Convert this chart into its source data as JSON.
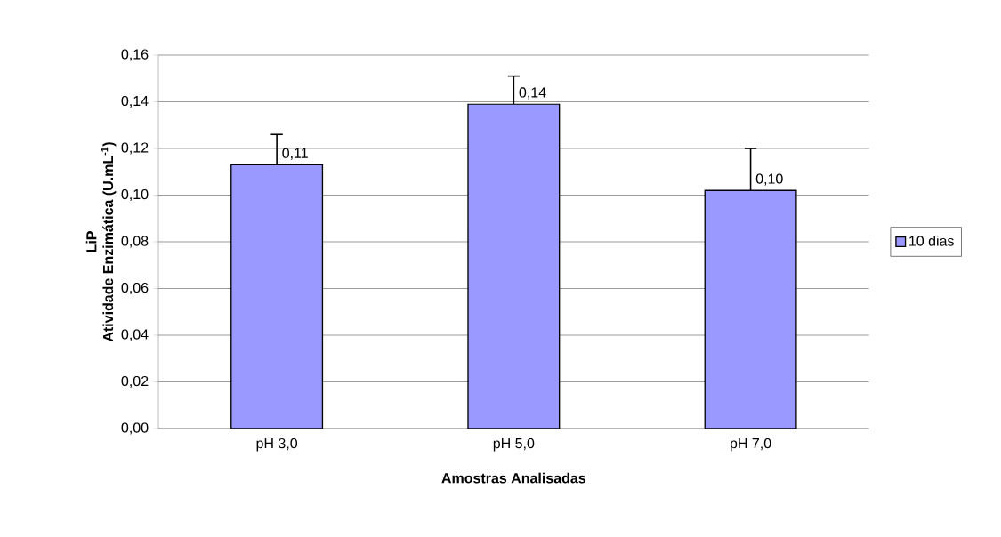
{
  "chart_data": {
    "type": "bar",
    "xlabel": "Amostras Analisadas",
    "ylabel": [
      "LiP",
      "Atividade Enzimática (U.mL$^{-1}$)"
    ],
    "categories": [
      "pH 3,0",
      "pH 5,0",
      "pH 7,0"
    ],
    "series": [
      {
        "name": "10 dias",
        "color": "#9999ff",
        "values": [
          0.113,
          0.139,
          0.102
        ],
        "errors": [
          0.013,
          0.012,
          0.018
        ],
        "value_labels": [
          "0,11",
          "0,14",
          "0,10"
        ]
      }
    ],
    "ylim": [
      0,
      0.16
    ],
    "yticks": [
      {
        "value": 0,
        "label": "0,00"
      },
      {
        "value": 0.02,
        "label": "0,02"
      },
      {
        "value": 0.04,
        "label": "0,04"
      },
      {
        "value": 0.06,
        "label": "0,06"
      },
      {
        "value": 0.08,
        "label": "0,08"
      },
      {
        "value": 0.1,
        "label": "0,10"
      },
      {
        "value": 0.12,
        "label": "0,12"
      },
      {
        "value": 0.14,
        "label": "0,14"
      },
      {
        "value": 0.16,
        "label": "0,16"
      }
    ],
    "grid": "y",
    "legend": "right"
  }
}
